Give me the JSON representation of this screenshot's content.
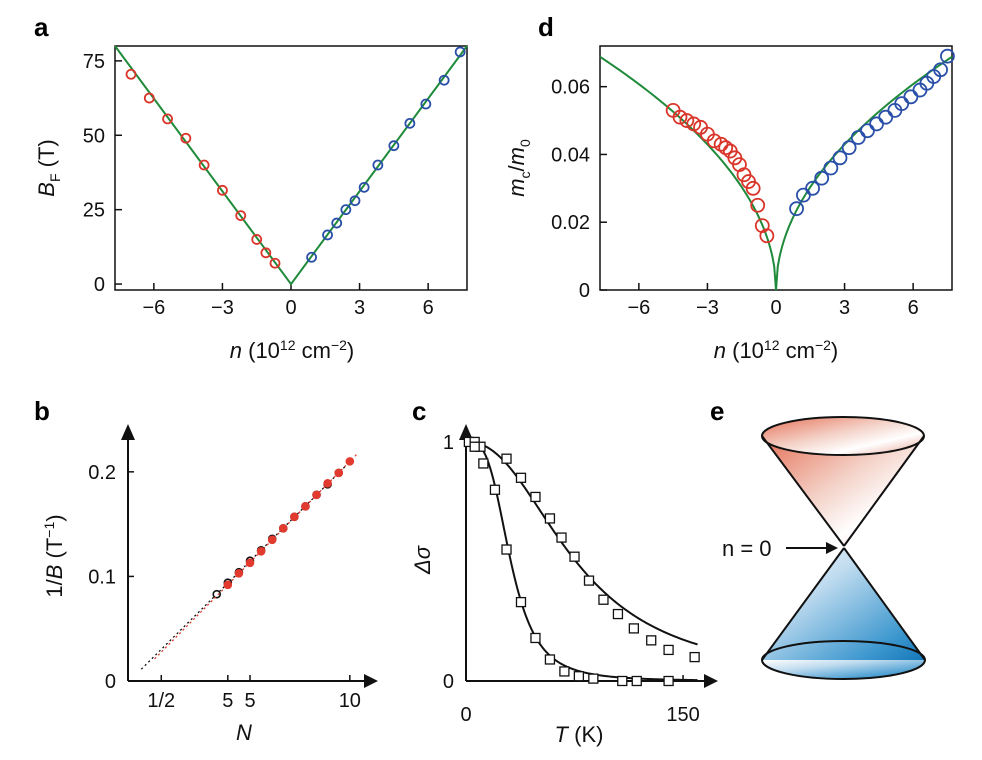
{
  "colors": {
    "hole": "#d9352a",
    "electron": "#2a4fa8",
    "fit": "#1f8a3a",
    "black": "#111111",
    "red_fill": "#e23a2f"
  },
  "panels": {
    "a": {
      "letter": "a"
    },
    "b": {
      "letter": "b"
    },
    "c": {
      "letter": "c"
    },
    "d": {
      "letter": "d"
    },
    "e": {
      "letter": "e",
      "annotation": "n = 0"
    }
  },
  "chart_data": [
    {
      "id": "a",
      "type": "scatter",
      "xlabel": "n (10^12 cm^-2)",
      "ylabel": "B_F (T)",
      "xlim": [
        -7.7,
        7.7
      ],
      "ylim": [
        -2,
        80
      ],
      "xticks": [
        -6,
        -3,
        0,
        3,
        6
      ],
      "xtick_labels": [
        "−6",
        "−3",
        "0",
        "3",
        "6"
      ],
      "yticks": [
        0,
        25,
        50,
        75
      ],
      "ytick_labels": [
        "0",
        "25",
        "50",
        "75"
      ],
      "series": [
        {
          "color": "#d9352a",
          "marker": "open-circle",
          "x": [
            -7.0,
            -6.2,
            -5.4,
            -4.6,
            -3.8,
            -3.0,
            -2.2,
            -1.5,
            -1.1,
            -0.7
          ],
          "y": [
            70.5,
            62.5,
            55.5,
            49.0,
            40.0,
            31.5,
            23.0,
            15.0,
            10.5,
            7.0
          ]
        },
        {
          "color": "#2a4fa8",
          "marker": "open-circle",
          "x": [
            0.9,
            1.6,
            2.0,
            2.4,
            2.8,
            3.2,
            3.8,
            4.5,
            5.2,
            5.9,
            6.7,
            7.4
          ],
          "y": [
            9.0,
            16.5,
            20.5,
            25.0,
            28.0,
            32.5,
            40.0,
            46.5,
            54.0,
            60.5,
            68.5,
            78.0
          ]
        },
        {
          "color": "#1f8a3a",
          "marker": "line",
          "x": [
            -7.7,
            0,
            7.7
          ],
          "y": [
            80,
            0,
            80
          ]
        }
      ]
    },
    {
      "id": "b",
      "type": "scatter",
      "xlabel": "N",
      "ylabel": "1/B (T^-1)",
      "xlim": [
        0,
        11
      ],
      "ylim": [
        0,
        0.24
      ],
      "xticks": [
        1.5,
        4.5,
        5.5,
        10
      ],
      "xtick_labels": [
        "1/2",
        "5",
        "5",
        "10"
      ],
      "yticks": [
        0,
        0.1,
        0.2
      ],
      "ytick_labels": [
        "0",
        "0.1",
        "0.2"
      ],
      "series": [
        {
          "color": "#111111",
          "marker": "open-circle",
          "x0": 0.6,
          "x": [
            4,
            4.5,
            5,
            5.5,
            6,
            6.5,
            7,
            7.5,
            8,
            8.5,
            9,
            9.5
          ],
          "y": [
            0.083,
            0.094,
            0.104,
            0.115,
            0.125,
            0.136,
            0.146,
            0.157,
            0.167,
            0.178,
            0.188,
            0.199
          ]
        },
        {
          "color": "#e23a2f",
          "marker": "filled-circle",
          "x0": 1.2,
          "x": [
            4.5,
            5,
            5.5,
            6,
            6.5,
            7,
            7.5,
            8,
            8.5,
            9,
            9.5,
            10
          ],
          "y": [
            0.092,
            0.103,
            0.113,
            0.124,
            0.135,
            0.146,
            0.157,
            0.167,
            0.178,
            0.189,
            0.199,
            0.21
          ]
        }
      ]
    },
    {
      "id": "c",
      "type": "scatter",
      "xlabel": "T (K)",
      "ylabel": "Δσ",
      "xlim": [
        0,
        170
      ],
      "ylim": [
        0,
        1.05
      ],
      "xticks": [
        0,
        150
      ],
      "xtick_labels": [
        "0",
        "150"
      ],
      "yticks": [
        0,
        1
      ],
      "ytick_labels": [
        "0",
        "1"
      ],
      "series": [
        {
          "color": "#111111",
          "marker": "open-square",
          "x": [
            2,
            6,
            10,
            28,
            38,
            48,
            58,
            66,
            75,
            85,
            95,
            105,
            116,
            128,
            140,
            158
          ],
          "y": [
            1.0,
            1.0,
            0.98,
            0.93,
            0.85,
            0.77,
            0.68,
            0.6,
            0.52,
            0.42,
            0.34,
            0.28,
            0.22,
            0.17,
            0.13,
            0.1
          ]
        },
        {
          "color": "#111111",
          "marker": "open-square",
          "x": [
            6,
            12,
            20,
            28,
            38,
            48,
            58,
            68,
            78,
            88,
            108,
            118,
            140
          ],
          "y": [
            0.98,
            0.91,
            0.8,
            0.55,
            0.33,
            0.18,
            0.09,
            0.04,
            0.02,
            0.01,
            0.0,
            0.0,
            0.0
          ]
        }
      ]
    },
    {
      "id": "d",
      "type": "scatter",
      "xlabel": "n (10^12 cm^-2)",
      "ylabel": "m_c/m_0",
      "xlim": [
        -7.7,
        7.7
      ],
      "ylim": [
        0,
        0.072
      ],
      "xticks": [
        -6,
        -3,
        0,
        3,
        6
      ],
      "xtick_labels": [
        "−6",
        "−3",
        "0",
        "3",
        "6"
      ],
      "yticks": [
        0,
        0.02,
        0.04,
        0.06
      ],
      "ytick_labels": [
        "0",
        "0.02",
        "0.04",
        "0.06"
      ],
      "series": [
        {
          "color": "#d9352a",
          "marker": "open-circle",
          "x": [
            -4.5,
            -4.2,
            -3.9,
            -3.6,
            -3.3,
            -3.0,
            -2.7,
            -2.4,
            -2.2,
            -2.0,
            -1.8,
            -1.6,
            -1.4,
            -1.2,
            -1.0,
            -0.8,
            -0.6,
            -0.4
          ],
          "y": [
            0.053,
            0.051,
            0.05,
            0.049,
            0.048,
            0.046,
            0.044,
            0.043,
            0.042,
            0.041,
            0.039,
            0.037,
            0.034,
            0.032,
            0.03,
            0.025,
            0.019,
            0.016
          ]
        },
        {
          "color": "#2a4fa8",
          "marker": "open-circle",
          "x": [
            0.9,
            1.2,
            1.6,
            2.0,
            2.4,
            2.8,
            3.2,
            3.6,
            4.0,
            4.4,
            4.8,
            5.2,
            5.5,
            5.9,
            6.3,
            6.6,
            6.9,
            7.2,
            7.5
          ],
          "y": [
            0.024,
            0.028,
            0.03,
            0.033,
            0.036,
            0.039,
            0.042,
            0.045,
            0.047,
            0.049,
            0.051,
            0.053,
            0.055,
            0.057,
            0.059,
            0.061,
            0.063,
            0.065,
            0.069
          ]
        },
        {
          "color": "#1f8a3a",
          "marker": "fit-curve",
          "model": "y = 0.0248*sqrt(|x|)"
        }
      ]
    }
  ]
}
